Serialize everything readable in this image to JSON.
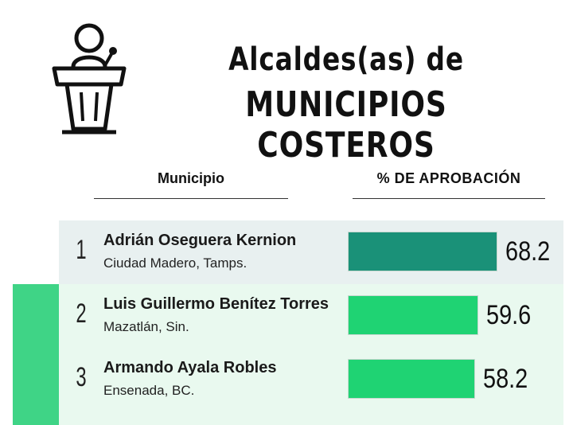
{
  "header": {
    "title_line1": "Alcaldes(as) de",
    "title_line2": "MUNICIPIOS COSTEROS",
    "icon": "podium-speaker-icon"
  },
  "columns": {
    "municipio": "Municipio",
    "aprobacion": "% DE APROBACIÓN"
  },
  "colors": {
    "first_bar": "#1a9178",
    "other_bars": "#1fd373",
    "side_band": "#3fd486"
  },
  "chart_data": {
    "type": "bar",
    "orientation": "horizontal",
    "categories": [
      "Adrián Oseguera Kernion",
      "Luis Guillermo Benítez Torres",
      "Armando Ayala Robles"
    ],
    "values": [
      68.2,
      59.6,
      58.2
    ],
    "ylabel": "% DE APROBACIÓN",
    "rows": [
      {
        "rank": "1",
        "name": "Adrián Oseguera Kernion",
        "place": "Ciudad Madero, Tamps.",
        "value": 68.2,
        "value_label": "68.2"
      },
      {
        "rank": "2",
        "name": "Luis Guillermo Benítez Torres",
        "place": "Mazatlán, Sin.",
        "value": 59.6,
        "value_label": "59.6"
      },
      {
        "rank": "3",
        "name": "Armando Ayala Robles",
        "place": "Ensenada, BC.",
        "value": 58.2,
        "value_label": "58.2"
      }
    ]
  }
}
